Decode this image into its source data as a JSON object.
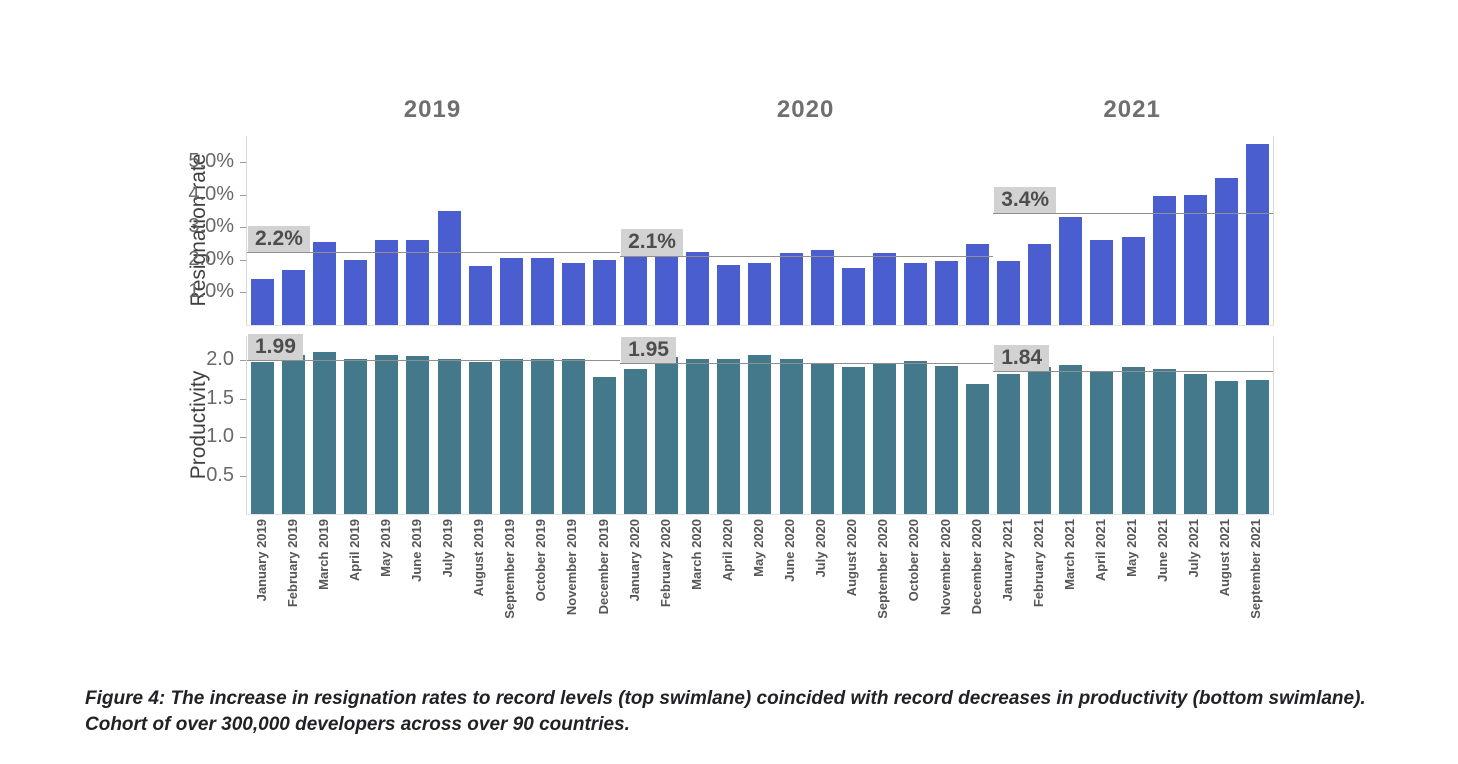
{
  "caption": "Figure 4: The increase in resignation rates to record levels (top swimlane) coincided with record decreases in productivity (bottom swimlane). Cohort of over 300,000 developers across over 90 countries.",
  "years_header": [
    {
      "label": "2019",
      "start_index": 0,
      "end_index": 11
    },
    {
      "label": "2020",
      "start_index": 12,
      "end_index": 23
    },
    {
      "label": "2021",
      "start_index": 24,
      "end_index": 32
    }
  ],
  "colors": {
    "resignation_bar": "#4a5ed0",
    "productivity_bar": "#44798b",
    "annotation_box_bg": "#d2d2d2",
    "annotation_text": "#4d4d4d",
    "reference_line": "#8f8f8f",
    "year_label": "#6f6f6f",
    "tick_label": "#686868",
    "axis_title": "#3f3f3f"
  },
  "chart_data": [
    {
      "type": "bar",
      "swimlane": "top",
      "ylabel": "Resignation rate",
      "bar_color": "#4a5ed0",
      "unit": "percent",
      "ylim": [
        0,
        5.8
      ],
      "grid": false,
      "categories": [
        "January 2019",
        "February 2019",
        "March 2019",
        "April 2019",
        "May 2019",
        "June 2019",
        "July 2019",
        "August 2019",
        "September 2019",
        "October 2019",
        "November 2019",
        "December 2019",
        "January 2020",
        "February 2020",
        "March 2020",
        "April 2020",
        "May 2020",
        "June 2020",
        "July 2020",
        "August 2020",
        "September 2020",
        "October 2020",
        "November 2020",
        "December 2020",
        "January 2021",
        "February 2021",
        "March 2021",
        "April 2021",
        "May 2021",
        "June 2021",
        "July 2021",
        "August 2021",
        "September 2021"
      ],
      "values": [
        1.4,
        1.7,
        2.55,
        2.0,
        2.6,
        2.6,
        3.5,
        1.8,
        2.05,
        2.05,
        1.9,
        2.0,
        2.15,
        2.3,
        2.25,
        1.85,
        1.9,
        2.2,
        2.3,
        1.75,
        2.2,
        1.9,
        1.95,
        2.5,
        1.95,
        2.5,
        3.3,
        2.6,
        2.7,
        3.95,
        4.0,
        4.5,
        5.55
      ],
      "yticks": [
        {
          "value": 5.0,
          "label": "5.0%"
        },
        {
          "value": 4.0,
          "label": "4.0%"
        },
        {
          "value": 3.0,
          "label": "3.0%"
        },
        {
          "value": 2.0,
          "label": "2.0%"
        },
        {
          "value": 1.0,
          "label": "1.0%"
        }
      ],
      "reference_lines": [
        {
          "label": "2.2%",
          "value": 2.2,
          "year": "2019",
          "start_index": 0,
          "end_index": 11
        },
        {
          "label": "2.1%",
          "value": 2.1,
          "year": "2020",
          "start_index": 12,
          "end_index": 23
        },
        {
          "label": "3.4%",
          "value": 3.4,
          "year": "2021",
          "start_index": 24,
          "end_index": 32
        }
      ]
    },
    {
      "type": "bar",
      "swimlane": "bottom",
      "ylabel": "Productivity",
      "bar_color": "#44798b",
      "unit": "index",
      "ylim": [
        0,
        2.31
      ],
      "grid": false,
      "categories": [
        "January 2019",
        "February 2019",
        "March 2019",
        "April 2019",
        "May 2019",
        "June 2019",
        "July 2019",
        "August 2019",
        "September 2019",
        "October 2019",
        "November 2019",
        "December 2019",
        "January 2020",
        "February 2020",
        "March 2020",
        "April 2020",
        "May 2020",
        "June 2020",
        "July 2020",
        "August 2020",
        "September 2020",
        "October 2020",
        "November 2020",
        "December 2020",
        "January 2021",
        "February 2021",
        "March 2021",
        "April 2021",
        "May 2021",
        "June 2021",
        "July 2021",
        "August 2021",
        "September 2021"
      ],
      "values": [
        1.97,
        2.07,
        2.1,
        2.01,
        2.07,
        2.05,
        2.01,
        1.97,
        2.01,
        2.02,
        2.01,
        1.78,
        1.89,
        2.04,
        2.02,
        2.02,
        2.07,
        2.02,
        1.96,
        1.91,
        1.96,
        1.99,
        1.92,
        1.69,
        1.82,
        1.91,
        1.94,
        1.86,
        1.91,
        1.89,
        1.82,
        1.73,
        1.74
      ],
      "yticks": [
        {
          "value": 2.0,
          "label": "2.0"
        },
        {
          "value": 1.5,
          "label": "1.5"
        },
        {
          "value": 1.0,
          "label": "1.0"
        },
        {
          "value": 0.5,
          "label": "0.5"
        }
      ],
      "reference_lines": [
        {
          "label": "1.99",
          "value": 1.99,
          "year": "2019",
          "start_index": 0,
          "end_index": 11
        },
        {
          "label": "1.95",
          "value": 1.95,
          "year": "2020",
          "start_index": 12,
          "end_index": 23
        },
        {
          "label": "1.84",
          "value": 1.84,
          "year": "2021",
          "start_index": 24,
          "end_index": 32
        }
      ]
    }
  ]
}
